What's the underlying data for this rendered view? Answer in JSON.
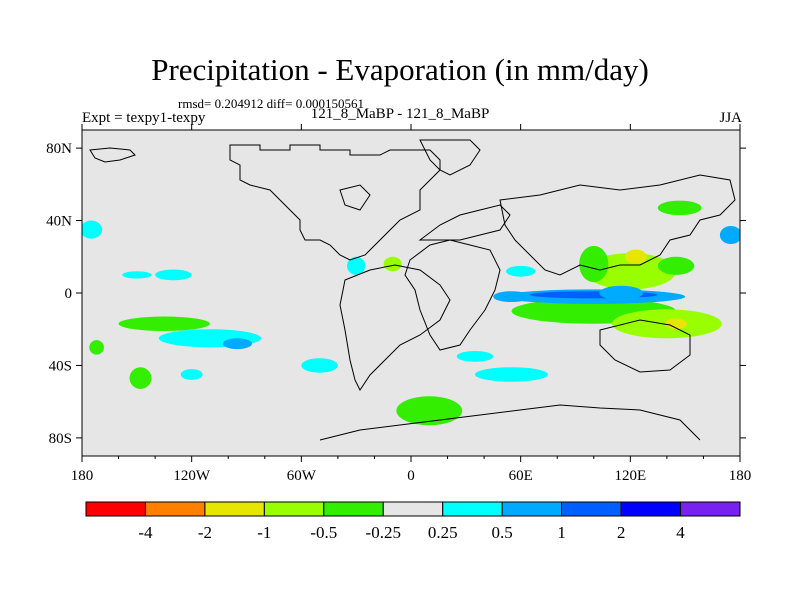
{
  "header": {
    "title": "Precipitation - Evaporation (in mm/day)",
    "stats": "rmsd= 0.204912 diff= 0.000150561",
    "experiment": "Expt = texpy1-texpy",
    "run": "121_8_MaBP - 121_8_MaBP",
    "season": "JJA"
  },
  "chart_data": {
    "type": "heatmap",
    "title": "Precipitation - Evaporation (in mm/day)",
    "projection": "cylindrical equidistant",
    "x_range": [
      -180,
      180
    ],
    "y_range": [
      -90,
      90
    ],
    "x_ticks": [
      {
        "value": -180,
        "label": "180"
      },
      {
        "value": -120,
        "label": "120W"
      },
      {
        "value": -60,
        "label": "60W"
      },
      {
        "value": 0,
        "label": "0"
      },
      {
        "value": 60,
        "label": "60E"
      },
      {
        "value": 120,
        "label": "120E"
      },
      {
        "value": 180,
        "label": "180"
      }
    ],
    "y_ticks": [
      {
        "value": 80,
        "label": "80N"
      },
      {
        "value": 40,
        "label": "40N"
      },
      {
        "value": 0,
        "label": "0"
      },
      {
        "value": -40,
        "label": "40S"
      },
      {
        "value": -80,
        "label": "80S"
      }
    ],
    "background_color": "#e6e6e6",
    "colorbar": {
      "colors": [
        "#ff0000",
        "#ff8000",
        "#e6e600",
        "#99ff00",
        "#33ee00",
        "#e6e6e6",
        "#00ffff",
        "#00aaff",
        "#0060ff",
        "#0000ff",
        "#7722ee"
      ],
      "labels": [
        "-4",
        "-2",
        "-1",
        "-0.5",
        "-0.25",
        "0.25",
        "0.5",
        "1",
        "2",
        "4"
      ]
    },
    "anomalies": [
      {
        "lon": 120,
        "lat": 12,
        "rx": 25,
        "ry": 10,
        "level": -0.5
      },
      {
        "lon": 123,
        "lat": 20,
        "rx": 6,
        "ry": 4,
        "level": -1
      },
      {
        "lon": 145,
        "lat": 15,
        "rx": 10,
        "ry": 5,
        "level": -0.25
      },
      {
        "lon": 147,
        "lat": 47,
        "rx": 12,
        "ry": 4,
        "level": -0.25
      },
      {
        "lon": 175,
        "lat": 32,
        "rx": 6,
        "ry": 5,
        "level": 0.5
      },
      {
        "lon": 100,
        "lat": 16,
        "rx": 8,
        "ry": 10,
        "level": -0.25
      },
      {
        "lon": 100,
        "lat": -10,
        "rx": 45,
        "ry": 7,
        "level": -0.25
      },
      {
        "lon": 140,
        "lat": -17,
        "rx": 30,
        "ry": 8,
        "level": -0.5
      },
      {
        "lon": 145,
        "lat": -17,
        "rx": 6,
        "ry": 3,
        "level": -1
      },
      {
        "lon": 100,
        "lat": -2,
        "rx": 50,
        "ry": 4,
        "level": 0.5
      },
      {
        "lon": 100,
        "lat": -1,
        "rx": 35,
        "ry": 2,
        "level": 1
      },
      {
        "lon": 55,
        "lat": -2,
        "rx": 10,
        "ry": 3,
        "level": 0.5
      },
      {
        "lon": 60,
        "lat": 12,
        "rx": 8,
        "ry": 3,
        "level": 0.25
      },
      {
        "lon": 115,
        "lat": 0,
        "rx": 12,
        "ry": 4,
        "level": 0.5
      },
      {
        "lon": -135,
        "lat": -17,
        "rx": 25,
        "ry": 4,
        "level": -0.25
      },
      {
        "lon": -110,
        "lat": -25,
        "rx": 28,
        "ry": 5,
        "level": 0.25
      },
      {
        "lon": -95,
        "lat": -28,
        "rx": 8,
        "ry": 3,
        "level": 0.5
      },
      {
        "lon": -148,
        "lat": -47,
        "rx": 6,
        "ry": 6,
        "level": -0.25
      },
      {
        "lon": -172,
        "lat": -30,
        "rx": 4,
        "ry": 4,
        "level": -0.25
      },
      {
        "lon": -120,
        "lat": -45,
        "rx": 6,
        "ry": 3,
        "level": 0.25
      },
      {
        "lon": -50,
        "lat": -40,
        "rx": 10,
        "ry": 4,
        "level": 0.25
      },
      {
        "lon": 10,
        "lat": -65,
        "rx": 18,
        "ry": 8,
        "level": -0.25
      },
      {
        "lon": 55,
        "lat": -45,
        "rx": 20,
        "ry": 4,
        "level": 0.25
      },
      {
        "lon": 35,
        "lat": -35,
        "rx": 10,
        "ry": 3,
        "level": 0.25
      },
      {
        "lon": -30,
        "lat": 15,
        "rx": 5,
        "ry": 5,
        "level": 0.25
      },
      {
        "lon": -10,
        "lat": 16,
        "rx": 5,
        "ry": 4,
        "level": -0.5
      },
      {
        "lon": -175,
        "lat": 35,
        "rx": 6,
        "ry": 5,
        "level": 0.25
      },
      {
        "lon": -130,
        "lat": 10,
        "rx": 10,
        "ry": 3,
        "level": 0.25
      },
      {
        "lon": -150,
        "lat": 10,
        "rx": 8,
        "ry": 2,
        "level": 0.25
      }
    ]
  }
}
